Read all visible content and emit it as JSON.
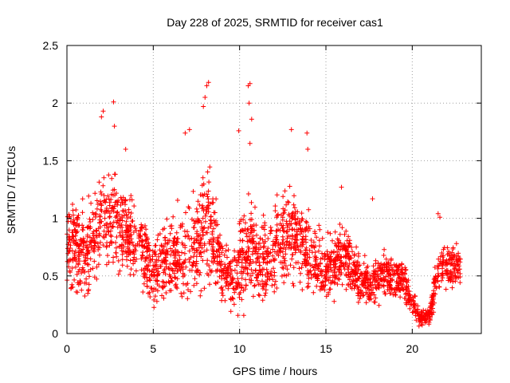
{
  "chart_data": {
    "type": "scatter",
    "title": "Day 228 of 2025, SRMTID for receiver cas1",
    "xlabel": "GPS time / hours",
    "ylabel": "SRMTID / TECUs",
    "xlim": [
      0,
      24
    ],
    "ylim": [
      0,
      2.5
    ],
    "x_ticks": [
      0,
      5,
      10,
      15,
      20
    ],
    "y_ticks": [
      0,
      0.5,
      1,
      1.5,
      2,
      2.5
    ],
    "x_tick_labels": [
      "0",
      "5",
      "10",
      "15",
      "20"
    ],
    "y_tick_labels": [
      "0",
      "0.5",
      "1",
      "1.5",
      "2",
      "2.5"
    ],
    "grid": true,
    "marker": "+",
    "marker_color": "#ff0000",
    "envelope": {
      "description": "Approximate activity envelope read off the plot; points are sampled inside it",
      "hours": [
        0,
        1,
        2,
        2.5,
        3,
        4,
        4.8,
        5.5,
        6.5,
        7.5,
        8.2,
        9,
        9.5,
        10.5,
        11.5,
        12,
        13,
        13.8,
        15,
        16,
        17,
        17.5,
        18.5,
        19.5,
        20,
        20.5,
        21,
        21.5,
        22.8
      ],
      "centre": [
        0.75,
        0.7,
        0.95,
        1.0,
        0.95,
        0.8,
        0.55,
        0.6,
        0.7,
        0.75,
        1.0,
        0.55,
        0.45,
        0.75,
        0.6,
        0.75,
        0.9,
        0.75,
        0.55,
        0.65,
        0.5,
        0.4,
        0.5,
        0.45,
        0.3,
        0.12,
        0.15,
        0.55,
        0.6
      ],
      "spread": [
        0.45,
        0.45,
        0.5,
        0.55,
        0.45,
        0.4,
        0.35,
        0.4,
        0.45,
        0.5,
        0.6,
        0.35,
        0.35,
        0.55,
        0.4,
        0.45,
        0.45,
        0.4,
        0.3,
        0.35,
        0.25,
        0.2,
        0.25,
        0.2,
        0.15,
        0.08,
        0.1,
        0.25,
        0.2
      ],
      "samples_per_hour": 110
    },
    "outliers": [
      {
        "x": 2.0,
        "y": 1.88
      },
      {
        "x": 2.1,
        "y": 1.93
      },
      {
        "x": 2.7,
        "y": 2.01
      },
      {
        "x": 2.75,
        "y": 1.8
      },
      {
        "x": 6.85,
        "y": 1.74
      },
      {
        "x": 7.1,
        "y": 1.77
      },
      {
        "x": 8.0,
        "y": 2.05
      },
      {
        "x": 8.1,
        "y": 2.15
      },
      {
        "x": 8.2,
        "y": 2.18
      },
      {
        "x": 7.9,
        "y": 1.97
      },
      {
        "x": 10.5,
        "y": 2.15
      },
      {
        "x": 10.6,
        "y": 2.17
      },
      {
        "x": 10.55,
        "y": 2.0
      },
      {
        "x": 10.7,
        "y": 1.86
      },
      {
        "x": 10.6,
        "y": 1.65
      },
      {
        "x": 13.0,
        "y": 1.77
      },
      {
        "x": 13.9,
        "y": 1.74
      },
      {
        "x": 13.95,
        "y": 1.6
      },
      {
        "x": 15.9,
        "y": 1.27
      },
      {
        "x": 17.7,
        "y": 1.17
      },
      {
        "x": 21.5,
        "y": 1.04
      },
      {
        "x": 21.6,
        "y": 1.01
      },
      {
        "x": 9.95,
        "y": 1.76
      },
      {
        "x": 3.4,
        "y": 1.6
      }
    ]
  }
}
